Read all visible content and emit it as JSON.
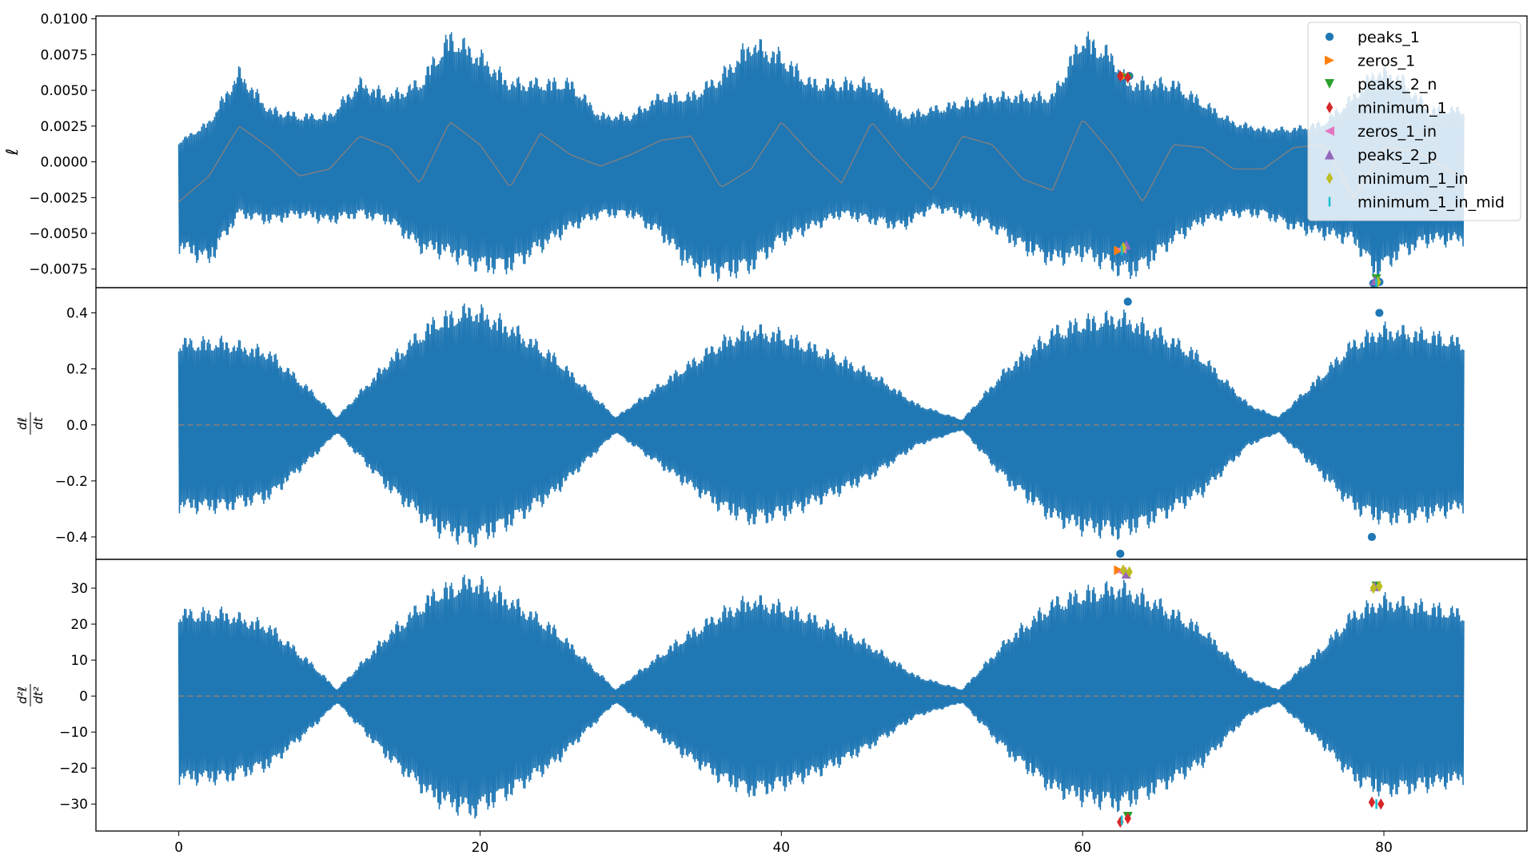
{
  "chart_data": [
    {
      "type": "line",
      "panel": "top",
      "ylabel": "ℓ",
      "xlim": [
        -5.5,
        89.5
      ],
      "ylim": [
        -0.0088,
        0.0102
      ],
      "yticks": [
        -0.0075,
        -0.005,
        -0.0025,
        0.0,
        0.0025,
        0.005,
        0.0075,
        0.01
      ],
      "ytick_labels": [
        "−0.0075",
        "−0.0050",
        "−0.0025",
        "0.0000",
        "0.0025",
        "0.0050",
        "0.0075",
        "0.0100"
      ],
      "show_xtick_labels": false,
      "series": [
        {
          "color": "#1f77b4",
          "kind": "dense-oscillation",
          "t_range": [
            0,
            85.3
          ],
          "envelope": {
            "t": [
              0,
              2,
              4,
              6,
              8,
              10,
              12,
              14,
              16,
              18,
              20,
              22,
              24,
              26,
              28,
              30,
              32,
              34,
              36,
              38,
              40,
              42,
              44,
              46,
              48,
              50,
              52,
              54,
              56,
              58,
              60,
              62,
              63,
              64,
              66,
              68,
              70,
              72,
              74,
              76,
              78,
              79.5,
              81,
              83,
              85.3
            ],
            "upper": [
              0.0015,
              0.003,
              0.0068,
              0.004,
              0.0035,
              0.0035,
              0.006,
              0.005,
              0.006,
              0.0095,
              0.008,
              0.006,
              0.006,
              0.006,
              0.0035,
              0.0035,
              0.005,
              0.005,
              0.0065,
              0.009,
              0.008,
              0.006,
              0.006,
              0.006,
              0.0035,
              0.004,
              0.0045,
              0.005,
              0.005,
              0.005,
              0.0095,
              0.008,
              0.006,
              0.006,
              0.006,
              0.0045,
              0.003,
              0.0025,
              0.0025,
              0.003,
              0.005,
              0.007,
              0.0065,
              0.004,
              0.004
            ],
            "lower": [
              -0.0065,
              -0.0075,
              -0.004,
              -0.0045,
              -0.004,
              -0.0045,
              -0.004,
              -0.0045,
              -0.0065,
              -0.007,
              -0.008,
              -0.008,
              -0.0065,
              -0.005,
              -0.004,
              -0.004,
              -0.0055,
              -0.008,
              -0.0085,
              -0.008,
              -0.006,
              -0.005,
              -0.004,
              -0.0045,
              -0.005,
              -0.0035,
              -0.004,
              -0.005,
              -0.0065,
              -0.0075,
              -0.007,
              -0.008,
              -0.0085,
              -0.008,
              -0.006,
              -0.0045,
              -0.004,
              -0.004,
              -0.005,
              -0.0055,
              -0.006,
              -0.0085,
              -0.007,
              -0.006,
              -0.006
            ]
          }
        },
        {
          "color": "#7f7f7f",
          "kind": "smooth-line",
          "note_style": "grey sinusoid trend",
          "t": [
            0,
            2,
            4,
            6,
            8,
            10,
            12,
            14,
            16,
            18,
            20,
            22,
            24,
            26,
            28,
            30,
            32,
            34,
            36,
            38,
            40,
            42,
            44,
            46,
            48,
            50,
            52,
            54,
            56,
            58,
            60,
            62,
            64,
            66,
            68,
            70,
            72,
            74,
            76,
            78,
            80,
            82,
            85
          ],
          "y": [
            -0.0028,
            -0.001,
            0.0025,
            0.001,
            -0.001,
            -0.0005,
            0.0018,
            0.001,
            -0.0015,
            0.0028,
            0.0012,
            -0.0018,
            0.002,
            0.0005,
            -0.0003,
            0.0005,
            0.0015,
            0.0018,
            -0.0018,
            -0.0005,
            0.0028,
            0.0005,
            -0.0015,
            0.0028,
            0.0002,
            -0.002,
            0.0018,
            0.0012,
            -0.0012,
            -0.002,
            0.003,
            0.0005,
            -0.0028,
            0.0012,
            0.001,
            -0.0005,
            -0.0005,
            0.001,
            0.0012,
            -0.0025,
            0.001,
            0.0008,
            -0.001
          ]
        }
      ],
      "markers": [
        {
          "series": "peaks_1",
          "color": "#1f77b4",
          "shape": "circle",
          "points": [
            [
              62.6,
              0.006
            ],
            [
              63.1,
              0.006
            ],
            [
              79.3,
              -0.0085
            ],
            [
              79.7,
              -0.0084
            ]
          ]
        },
        {
          "series": "zeros_1",
          "color": "#ff7f0e",
          "shape": "triangle-right",
          "points": [
            [
              62.4,
              -0.0062
            ],
            [
              62.8,
              0.006
            ]
          ]
        },
        {
          "series": "peaks_2_n",
          "color": "#2ca02c",
          "shape": "triangle-down",
          "points": [
            [
              63.0,
              0.0058
            ],
            [
              79.5,
              -0.0082
            ]
          ]
        },
        {
          "series": "minimum_1",
          "color": "#d62728",
          "shape": "diamond",
          "points": [
            [
              62.5,
              0.006
            ],
            [
              63.0,
              0.0059
            ]
          ]
        },
        {
          "series": "zeros_1_in",
          "color": "#e377c2",
          "shape": "triangle-left",
          "points": [
            [
              62.6,
              -0.0061
            ]
          ]
        },
        {
          "series": "peaks_2_p",
          "color": "#9467bd",
          "shape": "triangle-up",
          "points": [
            [
              62.9,
              -0.0058
            ],
            [
              79.4,
              -0.0083
            ]
          ]
        },
        {
          "series": "minimum_1_in",
          "color": "#bcbd22",
          "shape": "diamond",
          "points": [
            [
              62.7,
              -0.006
            ],
            [
              79.6,
              -0.0084
            ]
          ]
        },
        {
          "series": "minimum_1_in_mid",
          "color": "#17becf",
          "shape": "vline",
          "points": [
            [
              62.6,
              -0.0062
            ],
            [
              79.5,
              -0.0085
            ]
          ]
        }
      ],
      "legend": {
        "placement": "upper-right",
        "entries": [
          {
            "label": "peaks_1",
            "color": "#1f77b4",
            "shape": "circle"
          },
          {
            "label": "zeros_1",
            "color": "#ff7f0e",
            "shape": "triangle-right"
          },
          {
            "label": "peaks_2_n",
            "color": "#2ca02c",
            "shape": "triangle-down"
          },
          {
            "label": "minimum_1",
            "color": "#d62728",
            "shape": "diamond"
          },
          {
            "label": "zeros_1_in",
            "color": "#e377c2",
            "shape": "triangle-left"
          },
          {
            "label": "peaks_2_p",
            "color": "#9467bd",
            "shape": "triangle-up"
          },
          {
            "label": "minimum_1_in",
            "color": "#bcbd22",
            "shape": "diamond"
          },
          {
            "label": "minimum_1_in_mid",
            "color": "#17becf",
            "shape": "vline"
          }
        ]
      }
    },
    {
      "type": "line",
      "panel": "middle",
      "ylabel_num": "dℓ",
      "ylabel_den": "dt",
      "xlim": [
        -5.5,
        89.5
      ],
      "ylim": [
        -0.48,
        0.49
      ],
      "yticks": [
        -0.4,
        -0.2,
        0.0,
        0.2,
        0.4
      ],
      "ytick_labels": [
        "−0.4",
        "−0.2",
        "0.0",
        "0.2",
        "0.4"
      ],
      "show_xtick_labels": false,
      "series": [
        {
          "color": "#1f77b4",
          "kind": "dense-oscillation-symmetric",
          "t_range": [
            0,
            85.3
          ],
          "envelope": {
            "t": [
              0,
              3,
              6,
              9,
              10.5,
              14,
              17,
              19.5,
              22,
              25,
              29,
              33,
              36,
              38,
              40,
              43,
              46,
              49,
              52,
              55,
              58,
              60,
              62.5,
              65,
              68,
              71,
              73,
              76,
              78,
              80,
              83,
              85.3
            ],
            "upper": [
              0.32,
              0.32,
              0.28,
              0.12,
              0.03,
              0.25,
              0.4,
              0.45,
              0.38,
              0.26,
              0.03,
              0.2,
              0.32,
              0.37,
              0.35,
              0.28,
              0.2,
              0.08,
              0.02,
              0.22,
              0.36,
              0.4,
              0.42,
              0.36,
              0.26,
              0.08,
              0.03,
              0.2,
              0.32,
              0.37,
              0.35,
              0.32
            ]
          }
        },
        {
          "color": "#7f7f7f",
          "kind": "dashed-line",
          "t": [
            0,
            85.3
          ],
          "y": [
            0,
            0
          ]
        }
      ],
      "markers": [
        {
          "series": "peaks_1",
          "color": "#1f77b4",
          "shape": "circle",
          "points": [
            [
              63.0,
              0.44
            ],
            [
              62.5,
              -0.46
            ],
            [
              79.7,
              0.4
            ],
            [
              79.2,
              -0.4
            ]
          ]
        }
      ]
    },
    {
      "type": "line",
      "panel": "bottom",
      "ylabel_num": "d²ℓ",
      "ylabel_den": "dt²",
      "xlim": [
        -5.5,
        89.5
      ],
      "ylim": [
        -37.5,
        38.0
      ],
      "yticks": [
        -30,
        -20,
        -10,
        0,
        10,
        20,
        30
      ],
      "ytick_labels": [
        "−30",
        "−20",
        "−10",
        "0",
        "10",
        "20",
        "30"
      ],
      "xticks": [
        0,
        20,
        40,
        60,
        80
      ],
      "xtick_labels": [
        "0",
        "20",
        "40",
        "60",
        "80"
      ],
      "show_xtick_labels": true,
      "series": [
        {
          "color": "#1f77b4",
          "kind": "dense-oscillation-symmetric",
          "t_range": [
            0,
            85.3
          ],
          "envelope": {
            "t": [
              0,
              3,
              6,
              9,
              10.5,
              14,
              17,
              19.5,
              22,
              25,
              29,
              33,
              36,
              38,
              40,
              43,
              46,
              49,
              52,
              55,
              58,
              60,
              62.5,
              65,
              68,
              71,
              73,
              76,
              78,
              80,
              83,
              85.3
            ],
            "upper": [
              25,
              25,
              21,
              9,
              2,
              19,
              31,
              35,
              29,
              20,
              2,
              16,
              25,
              29,
              27,
              22,
              15,
              6,
              2,
              17,
              28,
              31,
              33,
              28,
              20,
              6,
              2,
              15,
              25,
              29,
              27,
              25
            ]
          }
        },
        {
          "color": "#7f7f7f",
          "kind": "dashed-line",
          "t": [
            0,
            85.3
          ],
          "y": [
            0,
            0
          ]
        }
      ],
      "markers": [
        {
          "series": "zeros_1",
          "color": "#ff7f0e",
          "shape": "triangle-right",
          "points": [
            [
              62.4,
              35.0
            ]
          ]
        },
        {
          "series": "peaks_2_n",
          "color": "#2ca02c",
          "shape": "triangle-down",
          "points": [
            [
              63.0,
              -33.5
            ],
            [
              79.5,
              30.5
            ]
          ]
        },
        {
          "series": "minimum_1",
          "color": "#d62728",
          "shape": "diamond",
          "points": [
            [
              62.5,
              -35.0
            ],
            [
              63.0,
              -34.0
            ],
            [
              79.2,
              -29.5
            ],
            [
              79.8,
              -30.0
            ]
          ]
        },
        {
          "series": "zeros_1_in",
          "color": "#e377c2",
          "shape": "triangle-left",
          "points": [
            [
              62.6,
              34.5
            ]
          ]
        },
        {
          "series": "peaks_2_p",
          "color": "#9467bd",
          "shape": "triangle-up",
          "points": [
            [
              62.9,
              34.0
            ],
            [
              79.4,
              30.5
            ]
          ]
        },
        {
          "series": "minimum_1_in",
          "color": "#bcbd22",
          "shape": "diamond",
          "points": [
            [
              62.7,
              35.0
            ],
            [
              63.1,
              34.5
            ],
            [
              79.3,
              30.0
            ],
            [
              79.7,
              30.5
            ]
          ]
        },
        {
          "series": "minimum_1_in_mid",
          "color": "#17becf",
          "shape": "vline",
          "points": [
            [
              62.6,
              -34.5
            ],
            [
              79.5,
              -30.0
            ]
          ]
        }
      ]
    }
  ]
}
